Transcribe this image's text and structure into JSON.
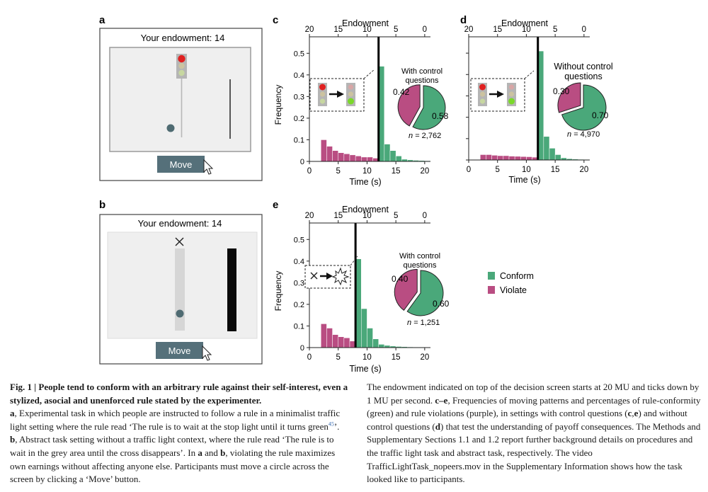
{
  "panels": {
    "a": {
      "letter": "a",
      "endowment": "Your endowment: 14",
      "button": "Move"
    },
    "b": {
      "letter": "b",
      "endowment": "Your endowment: 14",
      "button": "Move"
    },
    "c": {
      "letter": "c",
      "top_axis_label": "Endowment",
      "x_label": "Time (s)",
      "y_label": "Frequency",
      "pie_title_1": "With control",
      "pie_title_2": "questions",
      "violate": "0.42",
      "conform": "0.58",
      "n": "= 2,762"
    },
    "d": {
      "letter": "d",
      "top_axis_label": "Endowment",
      "x_label": "Time (s)",
      "y_label": "Frequency",
      "pie_title_1": "Without control",
      "pie_title_2": "questions",
      "violate": "0.30",
      "conform": "0.70",
      "n": "= 4,970"
    },
    "e": {
      "letter": "e",
      "top_axis_label": "Endowment",
      "x_label": "Time (s)",
      "y_label": "Frequency",
      "pie_title_1": "With control",
      "pie_title_2": "questions",
      "violate": "0.40",
      "conform": "0.60",
      "n": "= 1,251"
    }
  },
  "legend": {
    "conform": "Conform",
    "violate": "Violate"
  },
  "colors": {
    "conform": "#4aa87a",
    "violate": "#b94d82",
    "button": "#55707a",
    "circle": "#4f6b72"
  },
  "caption": {
    "fig_label": "Fig. 1 | ",
    "title": "People tend to conform with an arbitrary rule against their self-interest, even a stylized, asocial and unenforced rule stated by the experimenter.",
    "a_label": "a",
    "a_text": ", Experimental task in which people are instructed to follow a rule in a minimalist traffic light setting where the rule read ‘The rule is to wait at the stop light until it turns green",
    "ref": "45",
    "a_end": "’. ",
    "b_label": "b",
    "b_text": ", Abstract task setting without a traffic light context, where the rule read ‘The rule is to wait in the grey area until the cross disappears’. In ",
    "in_a": "a",
    "and": " and ",
    "in_b": "b",
    "rest_left": ", violating the rule maximizes own earnings without affecting anyone else. Participants must move a circle across the screen by clicking a ‘Move’ button.",
    "right_1": "The endowment indicated on top of the decision screen starts at 20 MU and ticks down by 1 MU per second. ",
    "ce_label": "c–e",
    "right_2": ", Frequencies of moving patterns and percentages of rule-conformity (green) and rule violations (purple), in settings with control questions (",
    "c_label": "c",
    "comma": ",",
    "e_label": "e",
    "right_3": ") and without control questions (",
    "d_label": "d",
    "right_4": ") that test the understanding of payoff consequences. The Methods and Supplementary Sections 1.1 and 1.2 report further background details on procedures and the traffic light task and abstract task, respectively. The video TrafficLightTask_nopeers.mov in the Supplementary Information shows how the task looked like to participants."
  },
  "chart_data": [
    {
      "type": "bar",
      "panel": "c",
      "x_label": "Time (s)",
      "y_label": "Frequency",
      "xlim": [
        0,
        21
      ],
      "ylim": [
        0,
        0.55
      ],
      "x_ticks": [
        0,
        5,
        10,
        15,
        20
      ],
      "y_ticks": [
        0,
        0.1,
        0.2,
        0.3,
        0.4,
        0.5
      ],
      "top_axis": {
        "label": "Endowment",
        "ticks": [
          20,
          15,
          10,
          5,
          0
        ]
      },
      "rule_line_time": 12,
      "series": [
        {
          "name": "Violate",
          "bins_start": [
            2,
            3,
            4,
            5,
            6,
            7,
            8,
            9,
            10,
            11
          ],
          "values": [
            0.1,
            0.07,
            0.05,
            0.04,
            0.035,
            0.03,
            0.025,
            0.02,
            0.02,
            0.015
          ]
        },
        {
          "name": "Conform",
          "bins_start": [
            12,
            13,
            14,
            15,
            16,
            17,
            18,
            19,
            20
          ],
          "values": [
            0.44,
            0.08,
            0.05,
            0.025,
            0.01,
            0.007,
            0.005,
            0.004,
            0.003
          ]
        }
      ],
      "pie": {
        "title": "With control questions",
        "conform": 0.58,
        "violate": 0.42,
        "n": 2762
      }
    },
    {
      "type": "bar",
      "panel": "d",
      "x_label": "Time (s)",
      "y_label": "Frequency",
      "xlim": [
        0,
        21
      ],
      "ylim": [
        0,
        0.55
      ],
      "x_ticks": [
        0,
        5,
        10,
        15,
        20
      ],
      "y_ticks": [
        0,
        0.1,
        0.2,
        0.3,
        0.4,
        0.5
      ],
      "top_axis": {
        "label": "Endowment",
        "ticks": [
          20,
          15,
          10,
          5,
          0
        ]
      },
      "rule_line_time": 12,
      "series": [
        {
          "name": "Violate",
          "bins_start": [
            2,
            3,
            4,
            5,
            6,
            7,
            8,
            9,
            10,
            11
          ],
          "values": [
            0.025,
            0.025,
            0.022,
            0.02,
            0.02,
            0.018,
            0.017,
            0.016,
            0.015,
            0.013
          ]
        },
        {
          "name": "Conform",
          "bins_start": [
            12,
            13,
            14,
            15,
            16,
            17,
            18,
            19,
            20
          ],
          "values": [
            0.51,
            0.11,
            0.055,
            0.025,
            0.01,
            0.006,
            0.004,
            0.003,
            0.002
          ]
        }
      ],
      "pie": {
        "title": "Without control questions",
        "conform": 0.7,
        "violate": 0.3,
        "n": 4970
      }
    },
    {
      "type": "bar",
      "panel": "e",
      "x_label": "Time (s)",
      "y_label": "Frequency",
      "xlim": [
        0,
        21
      ],
      "ylim": [
        0,
        0.55
      ],
      "x_ticks": [
        0,
        5,
        10,
        15,
        20
      ],
      "y_ticks": [
        0,
        0.1,
        0.2,
        0.3,
        0.4,
        0.5
      ],
      "top_axis": {
        "label": "Endowment",
        "ticks": [
          20,
          15,
          10,
          5,
          0
        ]
      },
      "rule_line_time": 8,
      "series": [
        {
          "name": "Violate",
          "bins_start": [
            2,
            3,
            4,
            5,
            6,
            7
          ],
          "values": [
            0.11,
            0.09,
            0.06,
            0.05,
            0.045,
            0.03
          ]
        },
        {
          "name": "Conform",
          "bins_start": [
            8,
            9,
            10,
            11,
            12,
            13,
            14,
            15,
            16,
            17,
            18,
            19,
            20
          ],
          "values": [
            0.41,
            0.18,
            0.09,
            0.04,
            0.015,
            0.01,
            0.007,
            0.005,
            0.004,
            0.003,
            0.002,
            0.002,
            0.001
          ]
        }
      ],
      "pie": {
        "title": "With control questions",
        "conform": 0.6,
        "violate": 0.4,
        "n": 1251
      }
    }
  ]
}
